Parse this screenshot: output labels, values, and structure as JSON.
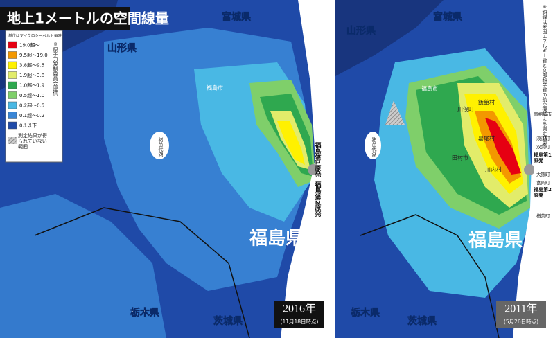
{
  "title": "地上1メートルの空間線量",
  "legend": {
    "unit": "単位はマイクロシーベルト毎時",
    "items": [
      {
        "label": "19.0超～",
        "color": "#e60012"
      },
      {
        "label": "9.5超～19.0",
        "color": "#f39800"
      },
      {
        "label": "3.8超～9.5",
        "color": "#fff100"
      },
      {
        "label": "1.9超～3.8",
        "color": "#e2ec6a"
      },
      {
        "label": "1.0超～1.9",
        "color": "#2fa84f"
      },
      {
        "label": "0.5超～1.0",
        "color": "#7fcf6a"
      },
      {
        "label": "0.2超～0.5",
        "color": "#49b8e4"
      },
      {
        "label": "0.1超～0.2",
        "color": "#3a86d6"
      },
      {
        "label": "0.1以下",
        "color": "#1f4aa8"
      }
    ],
    "no_data": "測定結果が得られていない範囲",
    "source": "※原子力規制委員会提供"
  },
  "maps": [
    {
      "year": "2016年",
      "date": "(11月18日時点)",
      "labels": [
        "宮城県",
        "山形県",
        "福島市",
        "猪苗代湖",
        "福島第1原発",
        "福島第2原発",
        "福島県",
        "栃木県",
        "茨城県"
      ]
    },
    {
      "year": "2011年",
      "date": "(5月26日時点)",
      "labels": [
        "山形県",
        "宮城県",
        "福島市",
        "飯舘村",
        "川俣町",
        "葛尾村",
        "田村市",
        "川内村",
        "猪苗代湖",
        "南相馬市",
        "浪江町",
        "双葉町",
        "福島第1原発",
        "大熊町",
        "富岡町",
        "福島第2原発",
        "楢葉町",
        "福島県",
        "栃木県",
        "茨城県"
      ],
      "note": "※斜線は米国エネルギー省と文部科学省の航空機による測定結果"
    }
  ]
}
